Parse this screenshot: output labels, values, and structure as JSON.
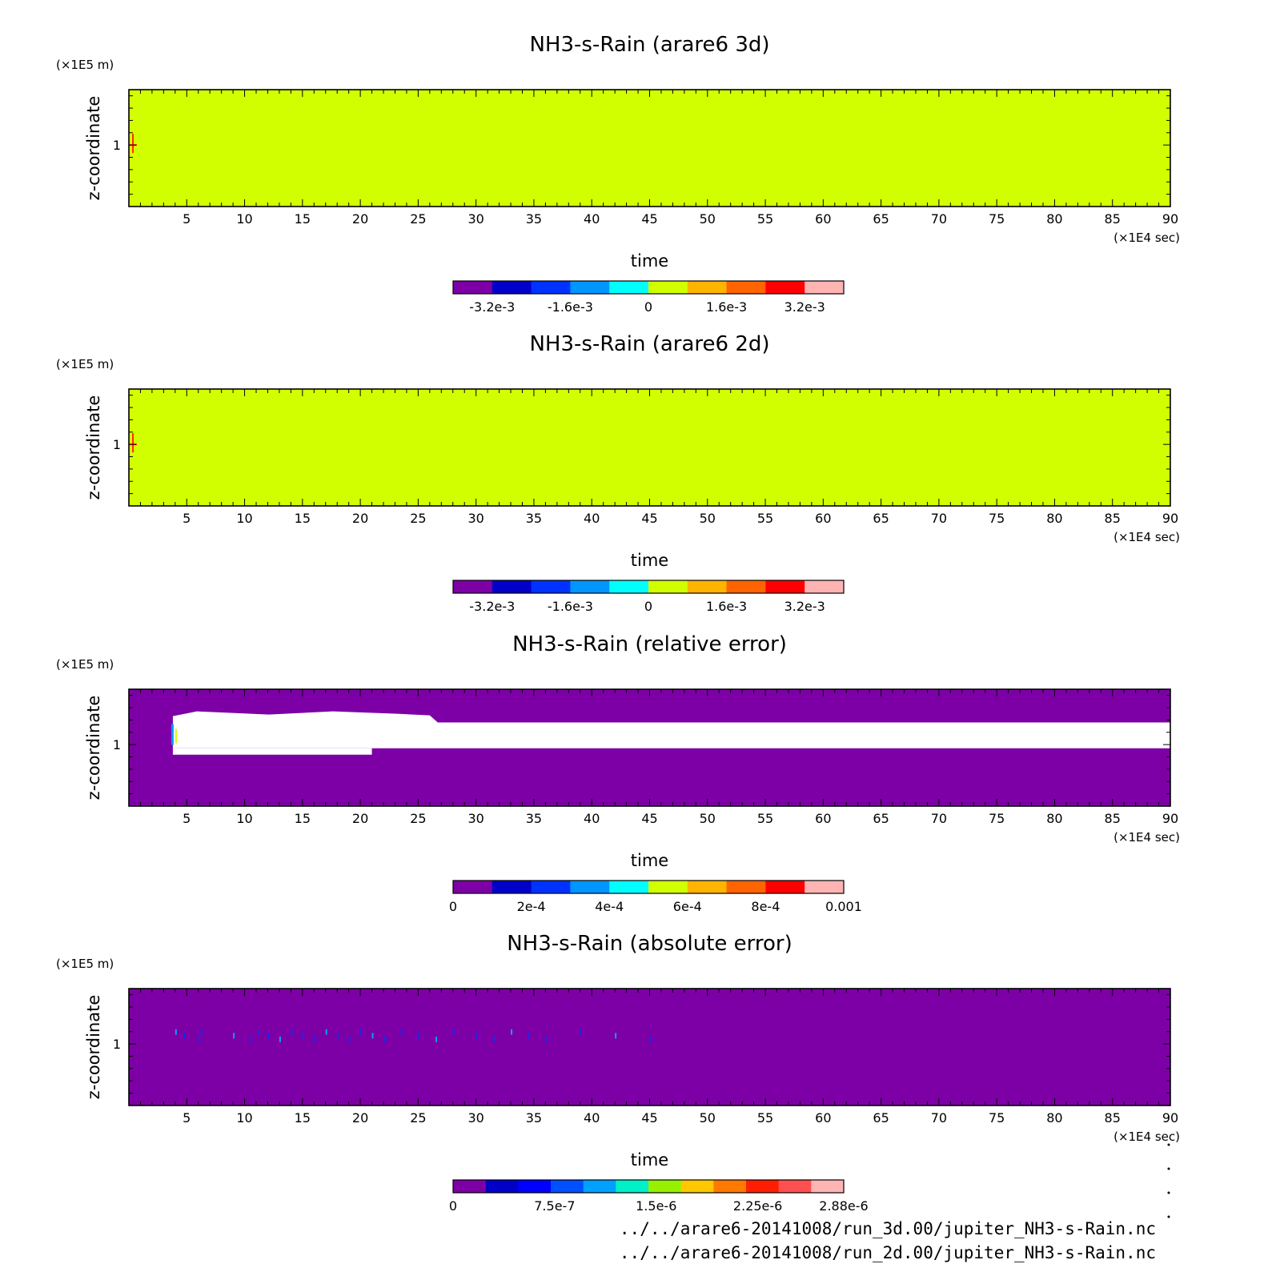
{
  "chart_data": [
    {
      "type": "heatmap",
      "title": "NH3-s-Rain (arare6 3d)",
      "xlabel": "time",
      "ylabel": "z-coordinate",
      "x_unit": "(×1E4 sec)",
      "y_unit": "(×1E5 m)",
      "xlim": [
        0,
        90
      ],
      "x_ticks": [
        "5",
        "10",
        "15",
        "20",
        "25",
        "30",
        "35",
        "40",
        "45",
        "50",
        "55",
        "60",
        "65",
        "70",
        "75",
        "80",
        "85",
        "90"
      ],
      "y_ticks": [
        "1"
      ],
      "field": "uniform 0 everywhere (small red spike near z=1 at t≈0.3)",
      "colorbar": {
        "colors": [
          "#7d00a6",
          "#0000c8",
          "#0032ff",
          "#0096ff",
          "#00ffff",
          "#d2ff00",
          "#ffb400",
          "#ff6400",
          "#ff0000",
          "#ffb4b4"
        ],
        "labels": [
          "-3.2e-3",
          "-1.6e-3",
          "0",
          "1.6e-3",
          "3.2e-3"
        ]
      }
    },
    {
      "type": "heatmap",
      "title": "NH3-s-Rain (arare6 2d)",
      "xlabel": "time",
      "ylabel": "z-coordinate",
      "x_unit": "(×1E4 sec)",
      "y_unit": "(×1E5 m)",
      "xlim": [
        0,
        90
      ],
      "x_ticks": [
        "5",
        "10",
        "15",
        "20",
        "25",
        "30",
        "35",
        "40",
        "45",
        "50",
        "55",
        "60",
        "65",
        "70",
        "75",
        "80",
        "85",
        "90"
      ],
      "y_ticks": [
        "1"
      ],
      "field": "uniform 0 everywhere (small red spike near z=1 at t≈0.3)",
      "colorbar": {
        "colors": [
          "#7d00a6",
          "#0000c8",
          "#0032ff",
          "#0096ff",
          "#00ffff",
          "#d2ff00",
          "#ffb400",
          "#ff6400",
          "#ff0000",
          "#ffb4b4"
        ],
        "labels": [
          "-3.2e-3",
          "-1.6e-3",
          "0",
          "1.6e-3",
          "3.2e-3"
        ]
      }
    },
    {
      "type": "heatmap",
      "title": "NH3-s-Rain (relative error)",
      "xlabel": "time",
      "ylabel": "z-coordinate",
      "x_unit": "(×1E4 sec)",
      "y_unit": "(×1E5 m)",
      "xlim": [
        0,
        90
      ],
      "x_ticks": [
        "5",
        "10",
        "15",
        "20",
        "25",
        "30",
        "35",
        "40",
        "45",
        "50",
        "55",
        "60",
        "65",
        "70",
        "75",
        "80",
        "85",
        "90"
      ],
      "y_ticks": [
        "1"
      ],
      "field": "0 everywhere; undefined (white) band z≈1.0–1.2 from t≈4 to 90",
      "white_band": {
        "t_start": 3.8,
        "t_end": 90,
        "z_low": 0.97,
        "z_high": 1.18
      },
      "colorbar": {
        "colors": [
          "#7d00a6",
          "#0000c8",
          "#0032ff",
          "#0096ff",
          "#00ffff",
          "#d2ff00",
          "#ffb400",
          "#ff6400",
          "#ff0000",
          "#ffb4b4"
        ],
        "labels": [
          "0",
          "2e-4",
          "4e-4",
          "6e-4",
          "8e-4",
          "0.001"
        ]
      }
    },
    {
      "type": "heatmap",
      "title": "NH3-s-Rain (absolute error)",
      "xlabel": "time",
      "ylabel": "z-coordinate",
      "x_unit": "(×1E4 sec)",
      "y_unit": "(×1E5 m)",
      "xlim": [
        0,
        90
      ],
      "x_ticks": [
        "5",
        "10",
        "15",
        "20",
        "25",
        "30",
        "35",
        "40",
        "45",
        "50",
        "55",
        "60",
        "65",
        "70",
        "75",
        "80",
        "85",
        "90"
      ],
      "y_ticks": [
        "1"
      ],
      "field": "≈0 everywhere; sparse small (blue, ~3e-7) specks near z≈1.1 between t≈4 and t≈45",
      "colorbar": {
        "colors": [
          "#7d00a6",
          "#0000c8",
          "#0000ff",
          "#0050ff",
          "#00a0ff",
          "#00f0c8",
          "#96f000",
          "#ffc800",
          "#ff7800",
          "#ff1e00",
          "#ff5050",
          "#ffb4b4"
        ],
        "labels": [
          "0",
          "7.5e-7",
          "1.5e-6",
          "2.25e-6",
          "2.88e-6"
        ]
      }
    }
  ],
  "footer": {
    "file_3d": "../../arare6-20141008/run_3d.00/jupiter_NH3-s-Rain.nc",
    "file_2d": "../../arare6-20141008/run_2d.00/jupiter_NH3-s-Rain.nc"
  }
}
